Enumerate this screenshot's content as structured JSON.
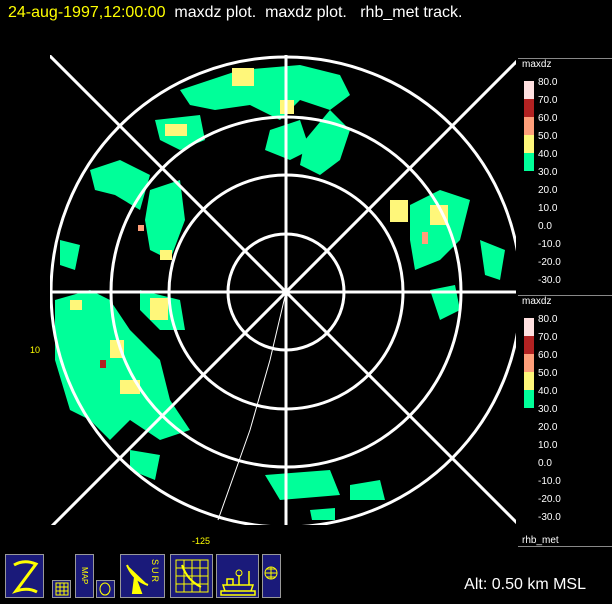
{
  "header": {
    "datetime": "24-aug-1997,12:00:00",
    "rest": "maxdz plot.  maxdz plot.   rhb_met track."
  },
  "legends": [
    {
      "title": "maxdz",
      "labels": [
        "80.0",
        "70.0",
        "60.0",
        "50.0",
        "40.0",
        "30.0",
        "20.0",
        "10.0",
        "0.0",
        "-10.0",
        "-20.0",
        "-30.0"
      ]
    },
    {
      "title": "maxdz",
      "labels": [
        "80.0",
        "70.0",
        "60.0",
        "50.0",
        "40.0",
        "30.0",
        "20.0",
        "10.0",
        "0.0",
        "-10.0",
        "-20.0",
        "-30.0"
      ]
    }
  ],
  "legend_colors": [
    "#ffe0e0",
    "#b22222",
    "#ff9f7a",
    "#fff77a",
    "#00ff99"
  ],
  "track_label": "rhb_met",
  "axis_labels": {
    "left": "10",
    "bottom": "-125"
  },
  "toolbar": [
    "z-icon",
    "grid-icon",
    "map-icon",
    "circle-icon",
    "radar-sur-icon",
    "radar-grid-icon",
    "ship-icon",
    "globe-icon"
  ],
  "toolbar_text": {
    "map": "MAP",
    "sur": "SUR"
  },
  "altitude": "Alt: 0.50 km MSL"
}
